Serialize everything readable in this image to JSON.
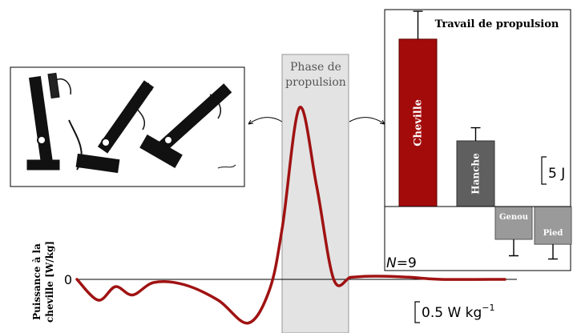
{
  "phase_label_line1": "Phase de",
  "phase_label_line2": "propulsion",
  "power_ylabel_line1": "Puissance à la",
  "power_ylabel_line2": "cheville [W/kg]",
  "zero_tick": "0",
  "power_scale_label": "0.5 W kg",
  "power_scale_exp": "−1",
  "n_label_italic": "N",
  "n_label_rest": "=9",
  "bar_scale_label": "5 J",
  "colors": {
    "power_line": "#a01212",
    "cheville": "#a30b0b",
    "hanche": "#5f5f5f",
    "genou_pied": "#9a9a9a",
    "phase_band": "#e3e3e3"
  },
  "chart_data": [
    {
      "type": "line",
      "ylabel": "Puissance à la cheville [W/kg]",
      "units": "W/kg",
      "series": [
        {
          "x": [
            0,
            0.05,
            0.09,
            0.13,
            0.18,
            0.25,
            0.33,
            0.4,
            0.45,
            0.48,
            0.52,
            0.56,
            0.6,
            0.64,
            0.68,
            0.72,
            0.78,
            0.85,
            1.0
          ],
          "y": [
            0.0,
            -0.2,
            -0.07,
            -0.15,
            -0.03,
            -0.05,
            -0.2,
            -0.42,
            -0.1,
            0.5,
            1.65,
            0.9,
            0.0,
            0.02,
            0.03,
            0.03,
            0.02,
            0.0,
            0.0
          ]
        }
      ]
    },
    {
      "type": "bar",
      "title": "Travail de propulsion",
      "categories": [
        "Cheville",
        "Hanche",
        "Genou",
        "Pied"
      ],
      "values": [
        10.2,
        4.0,
        -2.0,
        -2.3
      ],
      "errors": [
        1.7,
        0.8,
        1.0,
        0.9
      ],
      "units": "J"
    }
  ]
}
